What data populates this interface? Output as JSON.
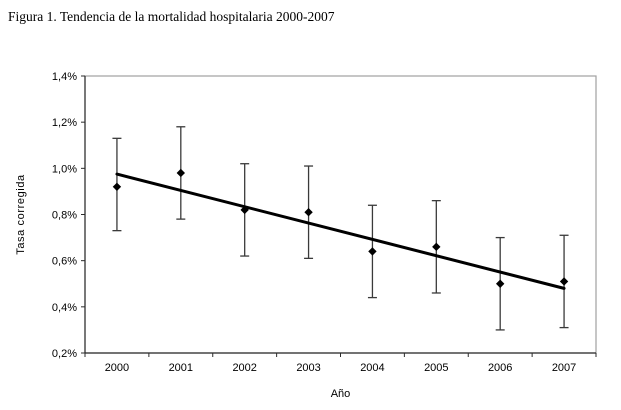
{
  "figure": {
    "title": "Figura 1. Tendencia de la mortalidad hospitalaria 2000-2007"
  },
  "chart_data": {
    "type": "scatter",
    "title": "Figura 1. Tendencia de la mortalidad hospitalaria 2000-2007",
    "xlabel": "Año",
    "ylabel": "Tasa corregida",
    "categories": [
      "2000",
      "2001",
      "2002",
      "2003",
      "2004",
      "2005",
      "2006",
      "2007"
    ],
    "series": [
      {
        "marker": "diamond",
        "values": [
          0.92,
          0.98,
          0.82,
          0.81,
          0.64,
          0.66,
          0.5,
          0.51
        ],
        "ci_low": [
          0.73,
          0.78,
          0.62,
          0.61,
          0.44,
          0.46,
          0.3,
          0.31
        ],
        "ci_high": [
          1.13,
          1.18,
          1.02,
          1.01,
          0.84,
          0.86,
          0.7,
          0.71
        ]
      }
    ],
    "trend_line": {
      "x_start": "2000",
      "y_start": 0.975,
      "x_end": "2007",
      "y_end": 0.48
    },
    "ylim": [
      0.2,
      1.4
    ],
    "y_tick_values": [
      0.2,
      0.4,
      0.6,
      0.8,
      1.0,
      1.2,
      1.4
    ],
    "y_tick_labels": [
      "0,2%",
      "0,4%",
      "0,6%",
      "0,8%",
      "1,0%",
      "1,2%",
      "1,4%"
    ],
    "grid": false,
    "legend": false,
    "colors": {
      "marker": "#000000",
      "trend_line": "#000000",
      "error_bar": "#3a3a3a",
      "plot_border": "#a0a0a0",
      "axis": "#2b2b2b",
      "text": "#000000"
    }
  }
}
